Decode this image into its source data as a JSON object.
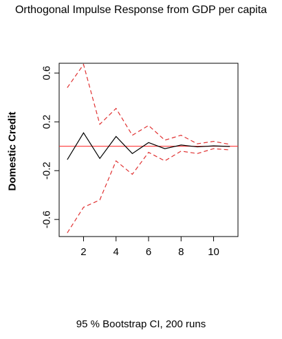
{
  "title": "Orthogonal Impulse Response from GDP per capita",
  "footer": "95 % Bootstrap CI,  200 runs",
  "chart_data": {
    "type": "line",
    "ylabel": "Domestic Credit",
    "xlabel": "",
    "xlim": [
      0.5,
      11.5
    ],
    "ylim": [
      -0.74,
      0.68
    ],
    "x_ticks": [
      2,
      4,
      6,
      8,
      10
    ],
    "y_ticks": [
      -0.6,
      -0.2,
      0.2,
      0.6
    ],
    "y_tick_labels": [
      "-0.6",
      "-0.2",
      "0.2",
      "0.6"
    ],
    "x": [
      1,
      2,
      3,
      4,
      5,
      6,
      7,
      8,
      9,
      10,
      11
    ],
    "series": [
      {
        "role": "response",
        "color": "#000000",
        "style": "solid",
        "values": [
          -0.11,
          0.11,
          -0.1,
          0.08,
          -0.06,
          0.03,
          -0.02,
          0.01,
          -0.005,
          0.003,
          -0.002
        ]
      },
      {
        "role": "upper-ci",
        "color": "#e03030",
        "style": "dashed",
        "values": [
          0.48,
          0.67,
          0.18,
          0.31,
          0.09,
          0.17,
          0.05,
          0.09,
          0.02,
          0.04,
          0.015
        ]
      },
      {
        "role": "lower-ci",
        "color": "#e03030",
        "style": "dashed",
        "values": [
          -0.71,
          -0.5,
          -0.44,
          -0.12,
          -0.23,
          -0.05,
          -0.12,
          -0.04,
          -0.06,
          -0.02,
          -0.03
        ]
      }
    ],
    "reference_line": {
      "y": 0,
      "color": "#ff3333"
    },
    "grid": false,
    "legend": "none"
  }
}
